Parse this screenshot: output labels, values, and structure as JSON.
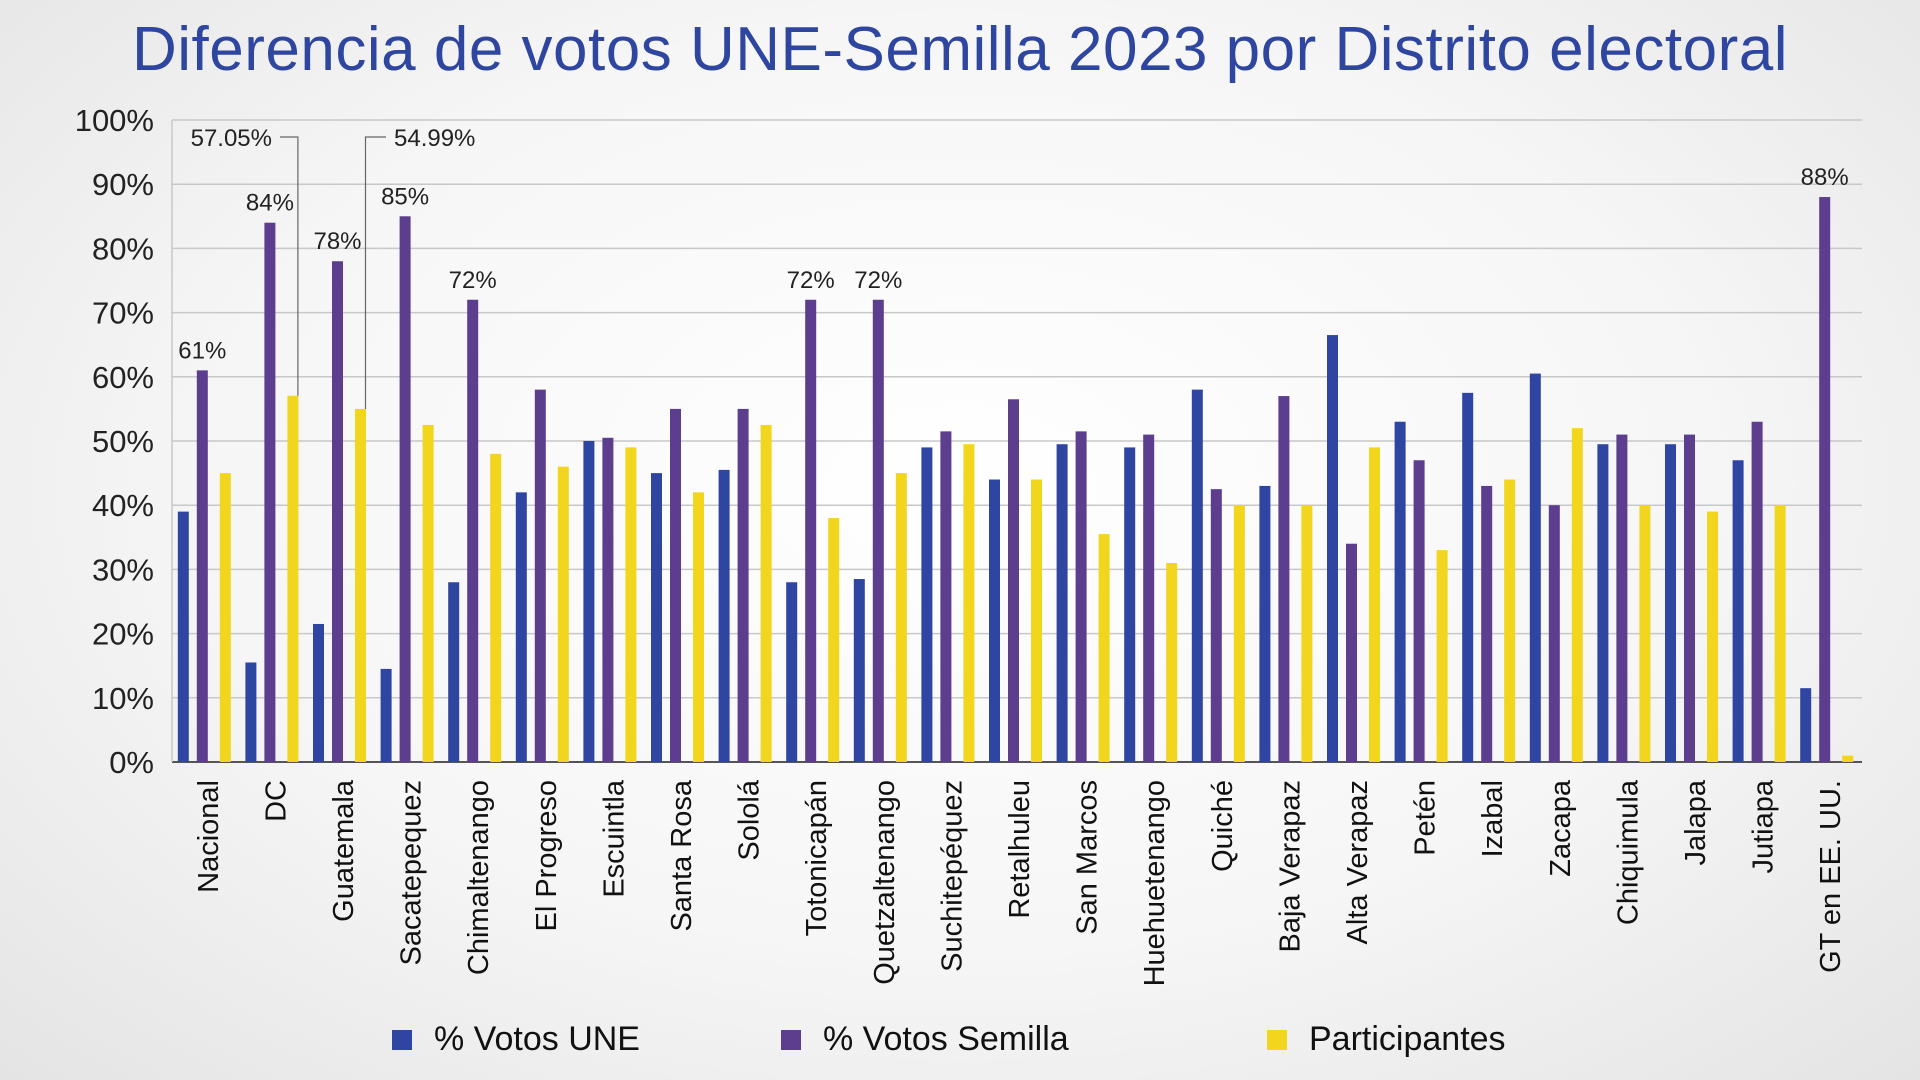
{
  "colors": {
    "une": "#2e45a2",
    "semilla": "#5c3d8e",
    "participantes": "#f2d51d",
    "title": "#2f46a0"
  },
  "chart_data": {
    "type": "bar",
    "title": "Diferencia de votos UNE-Semilla 2023 por Distrito electoral",
    "ylim": [
      0,
      100
    ],
    "ticks": [
      "0%",
      "10%",
      "20%",
      "30%",
      "40%",
      "50%",
      "60%",
      "70%",
      "80%",
      "90%",
      "100%"
    ],
    "grid": true,
    "legend_placement": "bottom",
    "categories": [
      "Nacional",
      "DC",
      "Guatemala",
      "Sacatepequez",
      "Chimaltenango",
      "El Progreso",
      "Escuintla",
      "Santa Rosa",
      "Sololá",
      "Totonicapán",
      "Quetzaltenango",
      "Suchitepéquez",
      "Retalhuleu",
      "San Marcos",
      "Huehuetenango",
      "Quiché",
      "Baja Verapaz",
      "Alta Verapaz",
      "Petén",
      "Izabal",
      "Zacapa",
      "Chiquimula",
      "Jalapa",
      "Jutiapa",
      "GT en EE. UU."
    ],
    "series": [
      {
        "name": "% Votos UNE",
        "values": [
          39,
          15.5,
          21.5,
          14.5,
          28,
          42,
          50,
          45,
          45.5,
          28,
          28.5,
          49,
          44,
          49.5,
          49,
          58,
          43,
          66.5,
          53,
          57.5,
          60.5,
          49.5,
          49.5,
          47,
          11.5
        ]
      },
      {
        "name": "% Votos Semilla",
        "values": [
          61,
          84,
          78,
          85,
          72,
          58,
          50.5,
          55,
          55,
          72,
          72,
          51.5,
          56.5,
          51.5,
          51,
          42.5,
          57,
          34,
          47,
          43,
          40,
          51,
          51,
          53,
          88
        ]
      },
      {
        "name": "Participantes",
        "values": [
          45,
          57.05,
          54.99,
          52.5,
          48,
          46,
          49,
          42,
          52.5,
          38,
          45,
          49.5,
          44,
          35.5,
          31,
          40,
          40,
          49,
          33,
          44,
          52,
          40,
          39,
          40,
          1
        ]
      }
    ],
    "data_labels": [
      {
        "category": "Nacional",
        "series": "% Votos Semilla",
        "text": "61%"
      },
      {
        "category": "DC",
        "series": "% Votos Semilla",
        "text": "84%"
      },
      {
        "category": "Guatemala",
        "series": "% Votos Semilla",
        "text": "78%"
      },
      {
        "category": "Sacatepequez",
        "series": "% Votos Semilla",
        "text": "85%"
      },
      {
        "category": "Chimaltenango",
        "series": "% Votos Semilla",
        "text": "72%"
      },
      {
        "category": "Totonicapán",
        "series": "% Votos Semilla",
        "text": "72%"
      },
      {
        "category": "Quetzaltenango",
        "series": "% Votos Semilla",
        "text": "72%"
      },
      {
        "category": "GT en EE. UU.",
        "series": "% Votos Semilla",
        "text": "88%"
      }
    ],
    "callouts": [
      {
        "category": "DC",
        "series": "Participantes",
        "text": "57.05%"
      },
      {
        "category": "Guatemala",
        "series": "Participantes",
        "text": "54.99%"
      }
    ]
  }
}
